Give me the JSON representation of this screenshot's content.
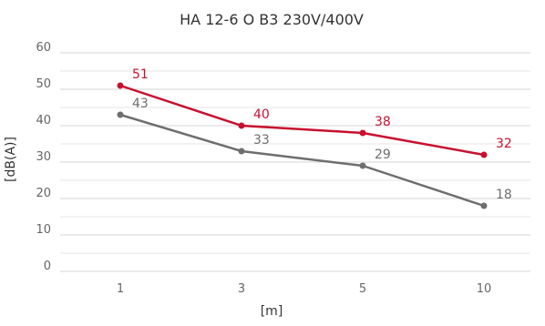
{
  "chart_data": {
    "type": "line",
    "title": "HA 12-6 O B3 230V/400V",
    "xlabel": "[m]",
    "ylabel": "[dB(A)]",
    "categories": [
      "1",
      "3",
      "5",
      "10"
    ],
    "ylim": [
      0,
      60
    ],
    "yticks": [
      0,
      10,
      20,
      30,
      40,
      50,
      60
    ],
    "grid": true,
    "series": [
      {
        "values": [
          51,
          40,
          38,
          32
        ],
        "color": "#c8102e",
        "point_labels": [
          "51",
          "40",
          "38",
          "32"
        ]
      },
      {
        "values": [
          43,
          33,
          29,
          18
        ],
        "color": "#6e6e6e",
        "point_labels": [
          "43",
          "33",
          "29",
          "18"
        ]
      }
    ]
  }
}
